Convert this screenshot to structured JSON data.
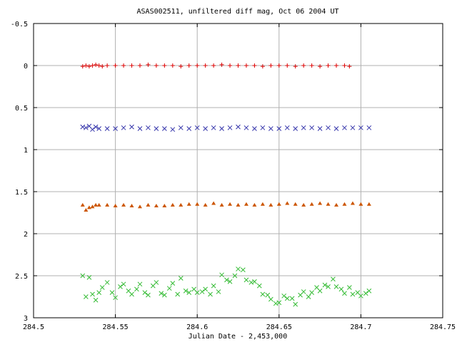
{
  "chart_data": {
    "type": "scatter",
    "title": "ASAS002511, unfiltered diff mag, Oct 06 2004 UT",
    "xlabel": "Julian Date - 2,453,000",
    "ylabel": "",
    "xlim": [
      284.5,
      284.75
    ],
    "ylim": [
      -0.5,
      3
    ],
    "y_inverted": true,
    "grid": true,
    "x_ticks": [
      284.5,
      284.55,
      284.6,
      284.65,
      284.7,
      284.75
    ],
    "x_tick_labels": [
      "284.5",
      "284.55",
      "284.6",
      "284.65",
      "284.7",
      "284.75"
    ],
    "y_ticks": [
      -0.5,
      0,
      0.5,
      1,
      1.5,
      2,
      2.5,
      3
    ],
    "y_tick_labels": [
      "-0.5",
      "0",
      "0.5",
      "1",
      "1.5",
      "2",
      "2.5",
      "3"
    ],
    "series": [
      {
        "color": "#dd0000",
        "marker": "plus",
        "x": [
          284.53,
          284.532,
          284.534,
          284.536,
          284.538,
          284.54,
          284.542,
          284.545,
          284.55,
          284.555,
          284.56,
          284.565,
          284.57,
          284.575,
          284.58,
          284.585,
          284.59,
          284.595,
          284.6,
          284.605,
          284.61,
          284.615,
          284.62,
          284.625,
          284.63,
          284.635,
          284.64,
          284.645,
          284.65,
          284.655,
          284.66,
          284.665,
          284.67,
          284.675,
          284.68,
          284.685,
          284.69,
          284.693
        ],
        "y": [
          0.01,
          0.0,
          0.01,
          0.0,
          -0.01,
          0.0,
          0.01,
          0.0,
          0.0,
          0.0,
          0.0,
          0.0,
          -0.01,
          0.0,
          0.0,
          0.0,
          0.01,
          0.0,
          0.0,
          0.0,
          0.0,
          -0.01,
          0.0,
          0.0,
          0.0,
          0.0,
          0.01,
          0.0,
          0.0,
          0.0,
          0.01,
          0.0,
          0.0,
          0.01,
          0.0,
          0.0,
          0.0,
          0.01
        ]
      },
      {
        "color": "#3333aa",
        "marker": "cross",
        "x": [
          284.53,
          284.532,
          284.534,
          284.536,
          284.538,
          284.54,
          284.545,
          284.55,
          284.555,
          284.56,
          284.565,
          284.57,
          284.575,
          284.58,
          284.585,
          284.59,
          284.595,
          284.6,
          284.605,
          284.61,
          284.615,
          284.62,
          284.625,
          284.63,
          284.635,
          284.64,
          284.645,
          284.65,
          284.655,
          284.66,
          284.665,
          284.67,
          284.675,
          284.68,
          284.685,
          284.69,
          284.695,
          284.7,
          284.705
        ],
        "y": [
          0.73,
          0.74,
          0.72,
          0.76,
          0.73,
          0.75,
          0.75,
          0.75,
          0.74,
          0.73,
          0.75,
          0.74,
          0.75,
          0.75,
          0.76,
          0.74,
          0.75,
          0.74,
          0.75,
          0.74,
          0.75,
          0.74,
          0.73,
          0.74,
          0.75,
          0.74,
          0.75,
          0.75,
          0.74,
          0.75,
          0.74,
          0.74,
          0.75,
          0.74,
          0.75,
          0.74,
          0.74,
          0.74,
          0.74
        ]
      },
      {
        "color": "#cc5500",
        "marker": "triangle",
        "x": [
          284.53,
          284.532,
          284.534,
          284.536,
          284.538,
          284.54,
          284.545,
          284.55,
          284.555,
          284.56,
          284.565,
          284.57,
          284.575,
          284.58,
          284.585,
          284.59,
          284.595,
          284.6,
          284.605,
          284.61,
          284.615,
          284.62,
          284.625,
          284.63,
          284.635,
          284.64,
          284.645,
          284.65,
          284.655,
          284.66,
          284.665,
          284.67,
          284.675,
          284.68,
          284.685,
          284.69,
          284.695,
          284.7,
          284.705
        ],
        "y": [
          1.66,
          1.72,
          1.69,
          1.68,
          1.66,
          1.66,
          1.66,
          1.67,
          1.66,
          1.67,
          1.68,
          1.66,
          1.67,
          1.67,
          1.66,
          1.66,
          1.65,
          1.65,
          1.66,
          1.64,
          1.66,
          1.65,
          1.66,
          1.65,
          1.66,
          1.65,
          1.66,
          1.65,
          1.64,
          1.65,
          1.66,
          1.65,
          1.64,
          1.65,
          1.66,
          1.65,
          1.64,
          1.65,
          1.65
        ]
      },
      {
        "color": "#33bb33",
        "marker": "cross",
        "x": [
          284.53,
          284.532,
          284.534,
          284.536,
          284.538,
          284.54,
          284.542,
          284.545,
          284.548,
          284.55,
          284.553,
          284.555,
          284.558,
          284.56,
          284.563,
          284.565,
          284.568,
          284.57,
          284.573,
          284.575,
          284.578,
          284.58,
          284.583,
          284.585,
          284.588,
          284.59,
          284.593,
          284.595,
          284.598,
          284.6,
          284.603,
          284.605,
          284.608,
          284.61,
          284.613,
          284.615,
          284.618,
          284.62,
          284.623,
          284.625,
          284.628,
          284.63,
          284.633,
          284.635,
          284.638,
          284.64,
          284.643,
          284.645,
          284.648,
          284.65,
          284.653,
          284.655,
          284.658,
          284.66,
          284.663,
          284.665,
          284.668,
          284.67,
          284.673,
          284.675,
          284.678,
          284.68,
          284.683,
          284.685,
          284.688,
          284.69,
          284.693,
          284.695,
          284.698,
          284.7,
          284.703,
          284.705
        ],
        "y": [
          2.5,
          2.75,
          2.52,
          2.72,
          2.79,
          2.7,
          2.64,
          2.58,
          2.7,
          2.76,
          2.63,
          2.6,
          2.68,
          2.72,
          2.66,
          2.6,
          2.7,
          2.73,
          2.62,
          2.58,
          2.71,
          2.73,
          2.65,
          2.59,
          2.72,
          2.53,
          2.68,
          2.7,
          2.66,
          2.7,
          2.69,
          2.66,
          2.72,
          2.62,
          2.69,
          2.49,
          2.55,
          2.57,
          2.5,
          2.42,
          2.43,
          2.55,
          2.58,
          2.57,
          2.62,
          2.72,
          2.73,
          2.78,
          2.83,
          2.82,
          2.74,
          2.77,
          2.77,
          2.84,
          2.73,
          2.69,
          2.75,
          2.7,
          2.64,
          2.68,
          2.61,
          2.63,
          2.54,
          2.63,
          2.66,
          2.71,
          2.64,
          2.72,
          2.7,
          2.74,
          2.71,
          2.68
        ]
      }
    ]
  }
}
